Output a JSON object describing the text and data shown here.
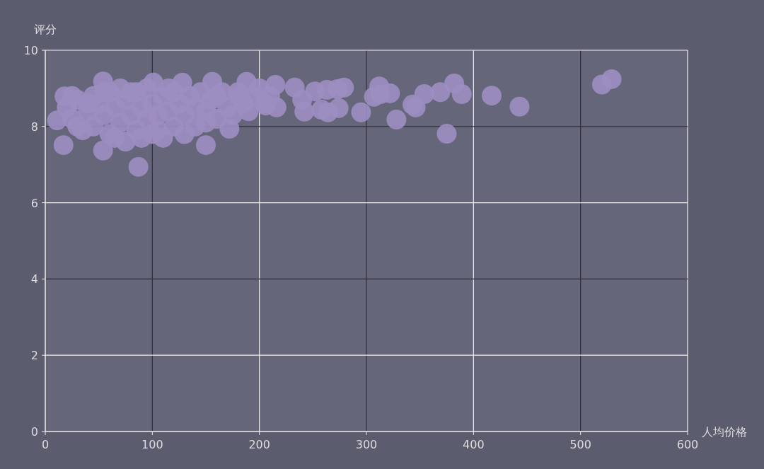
{
  "chart_data": {
    "type": "scatter",
    "xlabel": "人均价格",
    "ylabel": "评分",
    "xlim": [
      0,
      600
    ],
    "ylim": [
      0,
      10
    ],
    "xticks": [
      0,
      100,
      200,
      300,
      400,
      500,
      600
    ],
    "yticks": [
      0,
      2,
      4,
      6,
      8,
      10
    ],
    "grid": true,
    "marker": "circle",
    "series": [
      {
        "color": "#9d8ec2",
        "x": [
          520,
          529,
          417,
          443,
          375,
          382,
          369,
          389,
          354,
          343,
          346,
          328,
          322,
          312,
          307,
          313,
          295,
          279,
          273,
          274,
          263,
          264,
          252,
          258,
          242,
          240,
          233,
          216,
          215,
          206,
          200,
          188,
          182,
          172,
          156,
          150,
          87,
          54,
          17,
          54,
          18,
          11,
          128,
          101,
          20,
          25,
          30,
          35,
          40,
          45,
          45,
          50,
          55,
          60,
          60,
          65,
          70,
          70,
          75,
          75,
          80,
          85,
          85,
          90,
          95,
          95,
          100,
          100,
          105,
          110,
          110,
          115,
          120,
          120,
          125,
          130,
          130,
          135,
          140,
          140,
          145,
          150,
          155,
          160,
          165,
          170,
          175,
          180,
          185,
          190,
          195,
          205,
          210,
          30,
          55,
          65,
          90,
          115,
          150,
          25,
          40,
          80,
          105,
          160
        ],
        "values": [
          9.1,
          9.24,
          8.81,
          8.52,
          7.81,
          9.13,
          8.9,
          8.85,
          8.85,
          8.57,
          8.5,
          8.18,
          8.87,
          9.05,
          8.78,
          8.85,
          8.37,
          9.02,
          8.98,
          8.48,
          8.96,
          8.37,
          8.92,
          8.44,
          8.39,
          8.7,
          9.02,
          8.5,
          9.09,
          8.55,
          9.0,
          9.17,
          8.78,
          7.94,
          9.17,
          7.51,
          6.94,
          7.37,
          7.51,
          9.18,
          8.79,
          8.16,
          9.15,
          9.15,
          8.5,
          8.2,
          8.7,
          7.9,
          8.4,
          8.8,
          8.0,
          8.6,
          8.3,
          7.8,
          8.9,
          8.5,
          8.1,
          9.0,
          7.6,
          8.7,
          8.3,
          8.9,
          7.9,
          8.5,
          8.2,
          9.0,
          7.8,
          8.6,
          8.3,
          8.8,
          7.7,
          8.4,
          8.0,
          8.9,
          8.6,
          7.8,
          8.3,
          8.8,
          8.5,
          8.0,
          8.9,
          8.4,
          8.7,
          8.2,
          8.9,
          8.5,
          8.3,
          8.9,
          8.6,
          8.4,
          8.8,
          8.6,
          8.8,
          8.0,
          8.9,
          7.7,
          7.7,
          9.0,
          8.1,
          8.8,
          8.6,
          8.9,
          7.9,
          8.8
        ]
      }
    ]
  }
}
